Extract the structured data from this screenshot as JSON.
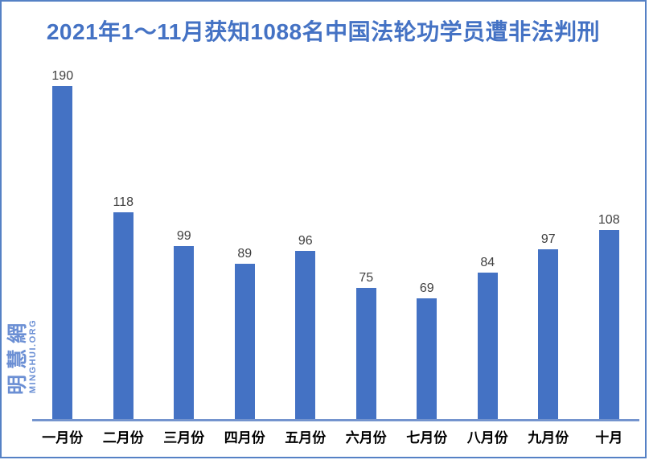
{
  "title": "2021年1～11月获知1088名中国法轮功学员遭非法判刑",
  "watermark": {
    "cjk": "明慧網",
    "latin": "MINGHUI.ORG"
  },
  "colors": {
    "bar": "#4472c4",
    "title_text": "#4472c4",
    "frame_border": "#5581c5",
    "axis_line": "#7494ce",
    "value_label": "#3f3f3f",
    "category_label": "#000000",
    "watermark": "#6b8fd4",
    "background": "#ffffff"
  },
  "chart_data": {
    "type": "bar",
    "title": "2021年1～11月获知1088名中国法轮功学员遭非法判刑",
    "categories": [
      "一月份",
      "二月份",
      "三月份",
      "四月份",
      "五月份",
      "六月份",
      "七月份",
      "八月份",
      "九月份",
      "十月"
    ],
    "values": [
      190,
      118,
      99,
      89,
      96,
      75,
      69,
      84,
      97,
      108
    ],
    "xlabel": "",
    "ylabel": "",
    "ylim": [
      0,
      200
    ],
    "grid": false,
    "legend": null,
    "data_labels": true,
    "bar_color": "#4472c4"
  }
}
